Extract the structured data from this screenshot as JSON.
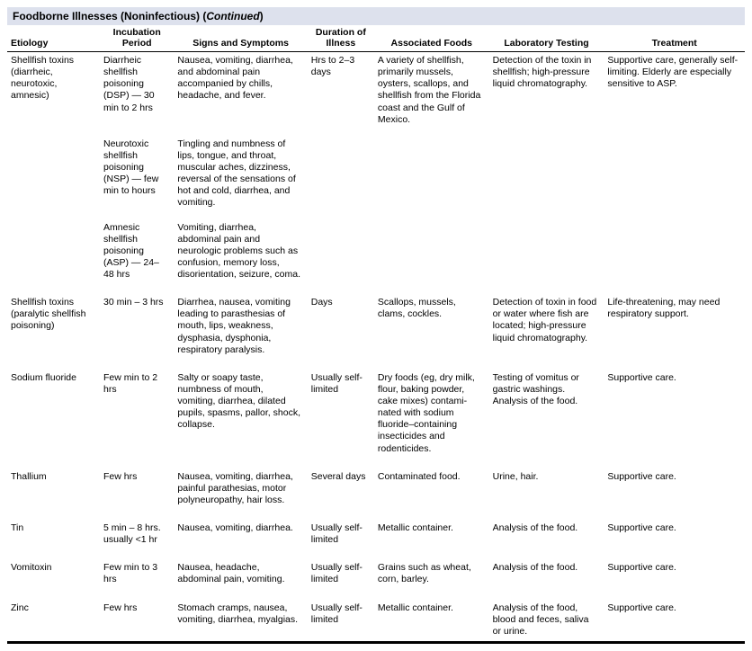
{
  "title": "Foodborne Illnesses (Noninfectious) (",
  "title_cont": "Continued",
  "title_close": ")",
  "headers": {
    "h1": "Etiology",
    "h2": "Incubation Period",
    "h3": "Signs and Symptoms",
    "h4": "Duration of Illness",
    "h5": "Associated Foods",
    "h6": "Laboratory Testing",
    "h7": "Treatment"
  },
  "rows": [
    {
      "etiology": "Shellfish toxins (diarrheic, neurotoxic, amnesic)",
      "incubation": "Diarrheic shellfish poisoning (DSP) — 30 min to 2 hrs",
      "signs": "Nausea, vomiting, diarrhea, and abdominal pain accompanied by chills, headache, and fever.",
      "duration": "Hrs to 2–3 days",
      "foods": "A variety of shellfish, primarily mussels, oysters, scallops, and shellfish from the Florida coast and the Gulf of Mexico.",
      "lab": "Detection of the toxin in shellfish; high-pressure liquid chromatography.",
      "treatment": "Supportive care, generally self-limiting. Elderly are especially sensitive to ASP."
    },
    {
      "etiology": "",
      "incubation": "Neurotoxic shellfish poisoning (NSP) — few min to hours",
      "signs": "Tingling and numbness of lips, tongue, and throat, muscular aches, dizziness, reversal of the sensations of hot and cold, diarrhea, and vomiting.",
      "duration": "",
      "foods": "",
      "lab": "",
      "treatment": ""
    },
    {
      "etiology": "",
      "incubation": "Amnesic shellfish poisoning (ASP) — 24–48 hrs",
      "signs": "Vomiting, diarrhea, abdominal pain and neurologic problems such as confusion, memory loss, disorientation, seizure, coma.",
      "duration": "",
      "foods": "",
      "lab": "",
      "treatment": ""
    },
    {
      "etiology": "Shellfish toxins (paralytic shellfish poisoning)",
      "incubation": "30 min – 3 hrs",
      "signs": "Diarrhea, nausea, vomiting leading to parasthesias of mouth, lips, weakness, dysphasia, dysphonia, respiratory paralysis.",
      "duration": "Days",
      "foods": "Scallops, mussels, clams, cockles.",
      "lab": "Detection of toxin in food or water where fish are located; high-pressure liquid chromatography.",
      "treatment": "Life-threatening, may need respiratory support."
    },
    {
      "etiology": "Sodium fluoride",
      "incubation": "Few min to 2 hrs",
      "signs": "Salty or soapy taste, numbness of mouth, vomiting, diarrhea, dilated pupils, spasms, pallor, shock, collapse.",
      "duration": "Usually self-limited",
      "foods": "Dry foods (eg, dry milk, flour, baking powder, cake mixes) contami-nated with sodium fluoride–containing insecticides and rodenticides.",
      "lab": "Testing of vomitus or gastric washings. Analysis of the food.",
      "treatment": "Supportive care."
    },
    {
      "etiology": "Thallium",
      "incubation": "Few hrs",
      "signs": "Nausea, vomiting, diarrhea, painful parathesias, motor polyneuropathy, hair loss.",
      "duration": "Several days",
      "foods": "Contaminated food.",
      "lab": "Urine, hair.",
      "treatment": "Supportive care."
    },
    {
      "etiology": "Tin",
      "incubation": "5 min – 8 hrs. usually <1 hr",
      "signs": "Nausea, vomiting, diarrhea.",
      "duration": "Usually self-limited",
      "foods": "Metallic container.",
      "lab": "Analysis of the food.",
      "treatment": "Supportive care."
    },
    {
      "etiology": "Vomitoxin",
      "incubation": "Few min to 3 hrs",
      "signs": "Nausea, headache, abdominal pain, vomiting.",
      "duration": "Usually self-limited",
      "foods": "Grains such as wheat, corn, barley.",
      "lab": "Analysis of the food.",
      "treatment": "Supportive care."
    },
    {
      "etiology": "Zinc",
      "incubation": "Few hrs",
      "signs": "Stomach cramps, nausea, vomiting, diarrhea, myalgias.",
      "duration": "Usually self-limited",
      "foods": "Metallic container.",
      "lab": "Analysis of the food, blood and feces, saliva or urine.",
      "treatment": "Supportive care."
    }
  ]
}
